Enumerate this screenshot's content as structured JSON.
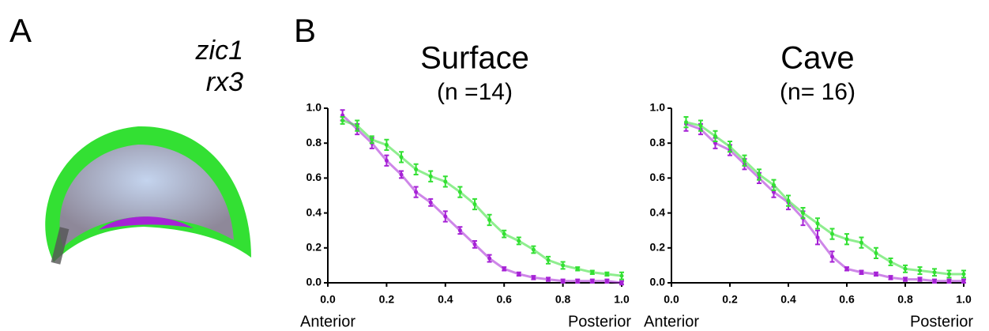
{
  "panel_a": {
    "label": "A",
    "legend": [
      {
        "name": "zic1",
        "color": "#33e033"
      },
      {
        "name": "rx3",
        "color": "#a622d6"
      }
    ]
  },
  "panel_b": {
    "label": "B"
  },
  "chart_data": [
    {
      "type": "line",
      "title": "Surface",
      "subtitle": "(n =14)",
      "x_end_labels": [
        "Anterior",
        "Posterior"
      ],
      "x": [
        0.05,
        0.1,
        0.15,
        0.2,
        0.25,
        0.3,
        0.35,
        0.4,
        0.45,
        0.5,
        0.55,
        0.6,
        0.65,
        0.7,
        0.75,
        0.8,
        0.85,
        0.9,
        0.95,
        1.0
      ],
      "series": [
        {
          "color": "#33e033",
          "values": [
            0.93,
            0.9,
            0.82,
            0.79,
            0.72,
            0.65,
            0.61,
            0.58,
            0.52,
            0.45,
            0.36,
            0.28,
            0.24,
            0.19,
            0.13,
            0.1,
            0.08,
            0.06,
            0.05,
            0.04
          ],
          "errors": [
            0.02,
            0.03,
            0.02,
            0.03,
            0.03,
            0.03,
            0.03,
            0.03,
            0.03,
            0.03,
            0.03,
            0.02,
            0.02,
            0.02,
            0.02,
            0.02,
            0.01,
            0.01,
            0.01,
            0.02
          ]
        },
        {
          "color": "#a622d6",
          "values": [
            0.96,
            0.88,
            0.8,
            0.7,
            0.62,
            0.52,
            0.46,
            0.38,
            0.3,
            0.22,
            0.14,
            0.08,
            0.05,
            0.03,
            0.02,
            0.01,
            0.01,
            0.01,
            0.01,
            0.0
          ],
          "errors": [
            0.03,
            0.03,
            0.03,
            0.03,
            0.02,
            0.03,
            0.02,
            0.03,
            0.02,
            0.02,
            0.02,
            0.01,
            0.01,
            0.01,
            0.01,
            0.01,
            0.01,
            0.01,
            0.01,
            0.01
          ]
        }
      ],
      "xlim": [
        0,
        1
      ],
      "xticks": [
        {
          "value": 0,
          "label": "0.0"
        },
        0.2,
        0.4,
        0.6,
        0.8,
        {
          "value": 1,
          "label": "1.0"
        }
      ],
      "ylim": [
        0,
        1
      ],
      "yticks": [
        {
          "value": 0,
          "label": "0.0"
        },
        0.2,
        0.4,
        0.6,
        0.8,
        {
          "value": 1,
          "label": "1.0"
        }
      ]
    },
    {
      "type": "line",
      "title": "Cave",
      "subtitle": "(n= 16)",
      "x_end_labels": [
        "Anterior",
        "Posterior"
      ],
      "x": [
        0.05,
        0.1,
        0.15,
        0.2,
        0.25,
        0.3,
        0.35,
        0.4,
        0.45,
        0.5,
        0.55,
        0.6,
        0.65,
        0.7,
        0.75,
        0.8,
        0.85,
        0.9,
        0.95,
        1.0
      ],
      "series": [
        {
          "color": "#33e033",
          "values": [
            0.92,
            0.9,
            0.84,
            0.78,
            0.7,
            0.62,
            0.56,
            0.47,
            0.4,
            0.34,
            0.28,
            0.25,
            0.23,
            0.17,
            0.12,
            0.08,
            0.07,
            0.06,
            0.05,
            0.05
          ],
          "errors": [
            0.03,
            0.03,
            0.03,
            0.03,
            0.03,
            0.03,
            0.03,
            0.03,
            0.03,
            0.03,
            0.03,
            0.03,
            0.03,
            0.03,
            0.02,
            0.02,
            0.02,
            0.02,
            0.02,
            0.02
          ]
        },
        {
          "color": "#a622d6",
          "values": [
            0.91,
            0.88,
            0.8,
            0.76,
            0.68,
            0.6,
            0.52,
            0.46,
            0.37,
            0.26,
            0.15,
            0.08,
            0.06,
            0.05,
            0.03,
            0.02,
            0.02,
            0.01,
            0.01,
            0.01
          ],
          "errors": [
            0.04,
            0.03,
            0.03,
            0.03,
            0.03,
            0.03,
            0.03,
            0.04,
            0.04,
            0.04,
            0.03,
            0.01,
            0.01,
            0.01,
            0.01,
            0.01,
            0.01,
            0.01,
            0.01,
            0.01
          ]
        }
      ],
      "xlim": [
        0,
        1
      ],
      "xticks": [
        {
          "value": 0,
          "label": "0.0"
        },
        0.2,
        0.4,
        0.6,
        0.8,
        {
          "value": 1,
          "label": "1.0"
        }
      ],
      "ylim": [
        0,
        1
      ],
      "yticks": [
        {
          "value": 0,
          "label": "0.0"
        },
        0.2,
        0.4,
        0.6,
        0.8,
        {
          "value": 1,
          "label": "1.0"
        }
      ]
    }
  ]
}
